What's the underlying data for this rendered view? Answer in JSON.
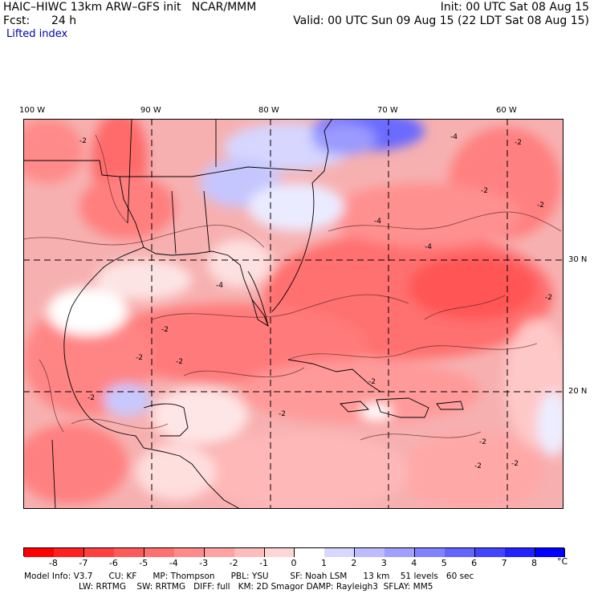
{
  "header": {
    "model_title": "HAIC–HIWC 13km ARW–GFS init   NCAR/MMM",
    "init": "Init: 00 UTC Sat 08 Aug 15",
    "fcst_label": "Fcst:",
    "fcst_value": "24 h",
    "valid": "Valid: 00 UTC Sun 09 Aug 15 (22 LDT Sat 08 Aug 15)",
    "field": "Lifted index"
  },
  "map": {
    "lon_labels": [
      "100 W",
      "90 W",
      "80 W",
      "70 W",
      "60 W"
    ],
    "lat_labels": [
      "30 N",
      "20 N"
    ],
    "contour_labels": [
      "-2",
      "-4",
      "-2",
      "-4",
      "-2",
      "-2",
      "-4",
      "-2",
      "-2",
      "-2",
      "-4",
      "-2",
      "-2",
      "-2",
      "-2",
      "-2",
      "-2",
      "-2"
    ]
  },
  "colorbar": {
    "labels": [
      "-8",
      "-7",
      "-6",
      "-5",
      "-4",
      "-3",
      "-2",
      "-1",
      "0",
      "1",
      "2",
      "3",
      "4",
      "5",
      "6",
      "7",
      "8"
    ],
    "unit": "°C",
    "colors": [
      "#ff0000",
      "#ff2020",
      "#ff4040",
      "#ff5a5a",
      "#ff7070",
      "#ff8a8a",
      "#ffa2a2",
      "#ffbcbc",
      "#ffd6d6",
      "#ffffff",
      "#d8d8ff",
      "#bcbcff",
      "#a0a0ff",
      "#8282ff",
      "#6464ff",
      "#4444ff",
      "#2222ff",
      "#0000ff"
    ]
  },
  "footer": {
    "line1": "Model Info: V3.7      CU: KF      MP: Thompson      PBL: YSU        SF: Noah LSM      13 km    51 levels   60 sec",
    "line2": "LW: RRTMG    SW: RRTMG   DIFF: full   KM: 2D Smagor DAMP: Rayleigh3  SFLAY: MM5"
  }
}
